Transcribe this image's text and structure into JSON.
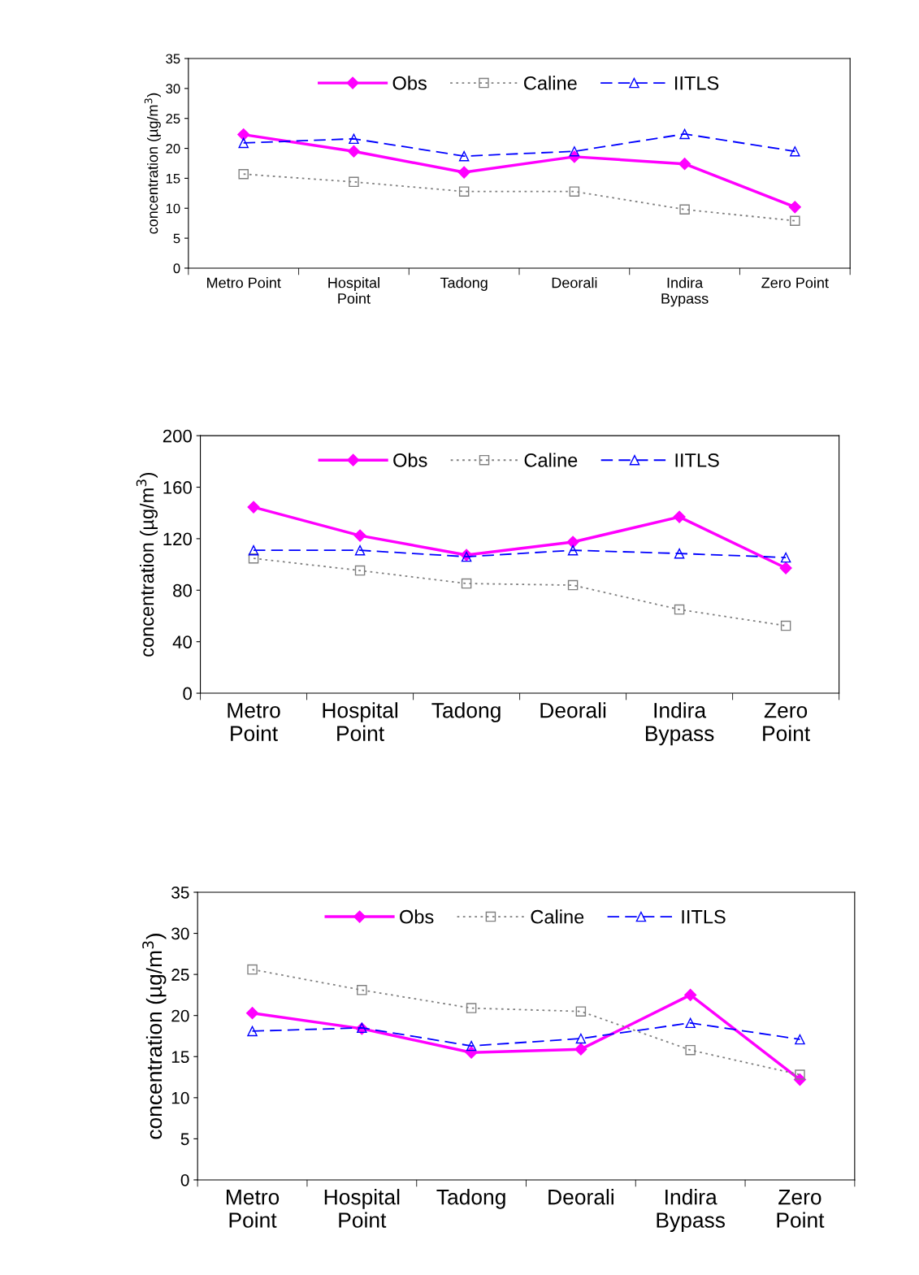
{
  "chart_data": [
    {
      "type": "line",
      "ylabel": "concentration (µg/m$^{3}$)",
      "categories": [
        "Metro Point",
        "Hospital\nPoint",
        "Tadong",
        "Deorali",
        "Indira\nBypass",
        "Zero Point"
      ],
      "ylim": [
        0,
        35
      ],
      "yticks": [
        0,
        5,
        10,
        15,
        20,
        25,
        30,
        35
      ],
      "grid": false,
      "legend": "top",
      "series": [
        {
          "name": "Obs",
          "color": "#ff00ff",
          "marker": "diamond",
          "line_style": "solid",
          "values": [
            22.3,
            19.5,
            16.0,
            18.6,
            17.4,
            10.2
          ]
        },
        {
          "name": "Caline",
          "color": "#808080",
          "marker": "square",
          "line_style": "dotted",
          "values": [
            15.7,
            14.4,
            12.8,
            12.8,
            9.8,
            7.9
          ]
        },
        {
          "name": "IITLS",
          "color": "#0000ff",
          "marker": "triangle",
          "line_style": "dashed",
          "values": [
            20.9,
            21.6,
            18.7,
            19.5,
            22.4,
            19.5
          ]
        }
      ]
    },
    {
      "type": "line",
      "ylabel": "concentration (µg/m$^{3}$)",
      "categories": [
        "Metro\nPoint",
        "Hospital\nPoint",
        "Tadong",
        "Deorali",
        "Indira\nBypass",
        "Zero\nPoint"
      ],
      "ylim": [
        0,
        200
      ],
      "yticks": [
        0,
        40,
        80,
        120,
        160,
        200
      ],
      "grid": false,
      "legend": "top",
      "series": [
        {
          "name": "Obs",
          "color": "#ff00ff",
          "marker": "diamond",
          "line_style": "solid",
          "values": [
            144.5,
            122.4,
            107.3,
            117.4,
            136.9,
            97.2
          ]
        },
        {
          "name": "Caline",
          "color": "#808080",
          "marker": "square",
          "line_style": "dotted",
          "values": [
            104.7,
            95.3,
            85.2,
            83.9,
            65.0,
            52.4
          ]
        },
        {
          "name": "IITLS",
          "color": "#0000ff",
          "marker": "triangle",
          "line_style": "dashed",
          "values": [
            111,
            111,
            106,
            111,
            108.5,
            105.4
          ]
        }
      ]
    },
    {
      "type": "line",
      "ylabel": "concentration (µg/m$^{3}$)",
      "categories": [
        "Metro\nPoint",
        "Hospital\nPoint",
        "Tadong",
        "Deorali",
        "Indira\nBypass",
        "Zero\nPoint"
      ],
      "ylim": [
        0,
        35
      ],
      "yticks": [
        0,
        5,
        10,
        15,
        20,
        25,
        30,
        35
      ],
      "grid": false,
      "legend": "top",
      "series": [
        {
          "name": "Obs",
          "color": "#ff00ff",
          "marker": "diamond",
          "line_style": "solid",
          "values": [
            20.3,
            18.4,
            15.5,
            15.9,
            22.5,
            12.2
          ]
        },
        {
          "name": "Caline",
          "color": "#808080",
          "marker": "square",
          "line_style": "dotted",
          "values": [
            25.6,
            23.1,
            20.9,
            20.5,
            15.8,
            12.8
          ]
        },
        {
          "name": "IITLS",
          "color": "#0000ff",
          "marker": "triangle",
          "line_style": "dashed",
          "values": [
            18.1,
            18.5,
            16.3,
            17.2,
            19.1,
            17.1
          ]
        }
      ]
    }
  ]
}
